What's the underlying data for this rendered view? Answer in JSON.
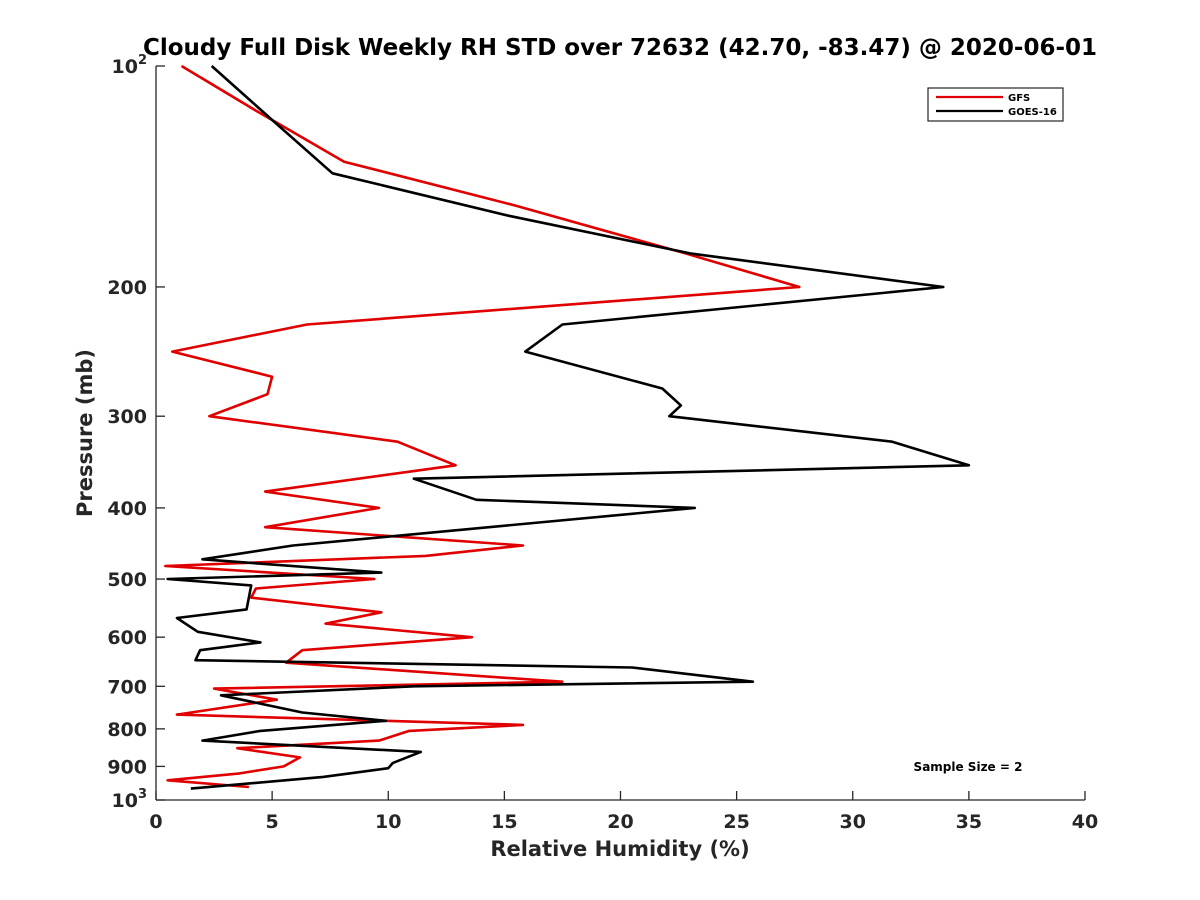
{
  "chart_data": {
    "type": "line",
    "title": "Cloudy Full Disk Weekly RH STD over 72632 (42.70, -83.47) @ 2020-06-01",
    "xlabel": "Relative Humidity (%)",
    "ylabel": "Pressure (mb)",
    "xlim": [
      0,
      40
    ],
    "ylim": [
      100,
      1000
    ],
    "y_scale": "log",
    "y_reversed": true,
    "grid": false,
    "legend_position": "top-right",
    "x_ticks": [
      0,
      5,
      10,
      15,
      20,
      25,
      30,
      35,
      40
    ],
    "x_tick_labels": [
      "0",
      "5",
      "10",
      "15",
      "20",
      "25",
      "30",
      "35",
      "40"
    ],
    "y_ticks": [
      100,
      200,
      300,
      400,
      500,
      600,
      700,
      800,
      900,
      1000
    ],
    "y_tick_labels": [
      {
        "base": "10",
        "exp": "2"
      },
      {
        "base": "200",
        "exp": ""
      },
      {
        "base": "300",
        "exp": ""
      },
      {
        "base": "400",
        "exp": ""
      },
      {
        "base": "500",
        "exp": ""
      },
      {
        "base": "600",
        "exp": ""
      },
      {
        "base": "700",
        "exp": ""
      },
      {
        "base": "800",
        "exp": ""
      },
      {
        "base": "900",
        "exp": ""
      },
      {
        "base": "10",
        "exp": "3"
      }
    ],
    "annotation": "Sample Size = 2",
    "series": [
      {
        "name": "GFS",
        "color": "#e00000",
        "points": [
          [
            1.1,
            100
          ],
          [
            4.3,
            115
          ],
          [
            8.1,
            135
          ],
          [
            15.5,
            155
          ],
          [
            22.8,
            180
          ],
          [
            27.7,
            200
          ],
          [
            6.5,
            225
          ],
          [
            0.7,
            245
          ],
          [
            5.0,
            265
          ],
          [
            4.8,
            280
          ],
          [
            2.3,
            300
          ],
          [
            10.4,
            325
          ],
          [
            12.9,
            350
          ],
          [
            4.7,
            380
          ],
          [
            9.6,
            400
          ],
          [
            4.7,
            425
          ],
          [
            15.8,
            450
          ],
          [
            11.6,
            465
          ],
          [
            0.4,
            480
          ],
          [
            9.4,
            500
          ],
          [
            4.3,
            515
          ],
          [
            4.1,
            530
          ],
          [
            9.7,
            555
          ],
          [
            7.3,
            575
          ],
          [
            13.6,
            600
          ],
          [
            6.3,
            625
          ],
          [
            5.6,
            650
          ],
          [
            17.5,
            690
          ],
          [
            2.5,
            705
          ],
          [
            5.2,
            730
          ],
          [
            0.9,
            765
          ],
          [
            15.8,
            790
          ],
          [
            10.9,
            805
          ],
          [
            9.6,
            830
          ],
          [
            3.5,
            850
          ],
          [
            6.2,
            875
          ],
          [
            5.5,
            900
          ],
          [
            3.6,
            920
          ],
          [
            0.5,
            940
          ],
          [
            4.0,
            960
          ]
        ]
      },
      {
        "name": "GOES-16",
        "color": "#000000",
        "points": [
          [
            2.4,
            100
          ],
          [
            5.2,
            120
          ],
          [
            7.6,
            140
          ],
          [
            15.2,
            160
          ],
          [
            23.0,
            180
          ],
          [
            33.9,
            200
          ],
          [
            17.5,
            225
          ],
          [
            15.9,
            245
          ],
          [
            21.8,
            275
          ],
          [
            22.6,
            290
          ],
          [
            22.1,
            300
          ],
          [
            31.7,
            325
          ],
          [
            35.0,
            350
          ],
          [
            11.1,
            365
          ],
          [
            13.8,
            390
          ],
          [
            23.2,
            400
          ],
          [
            5.9,
            450
          ],
          [
            2.0,
            470
          ],
          [
            9.7,
            490
          ],
          [
            0.5,
            500
          ],
          [
            4.1,
            510
          ],
          [
            3.9,
            550
          ],
          [
            0.9,
            565
          ],
          [
            1.8,
            590
          ],
          [
            4.5,
            610
          ],
          [
            1.9,
            625
          ],
          [
            1.7,
            645
          ],
          [
            20.5,
            660
          ],
          [
            25.7,
            690
          ],
          [
            11.1,
            700
          ],
          [
            2.8,
            720
          ],
          [
            6.3,
            760
          ],
          [
            9.9,
            780
          ],
          [
            4.5,
            805
          ],
          [
            2.0,
            830
          ],
          [
            11.4,
            860
          ],
          [
            10.2,
            890
          ],
          [
            10.0,
            905
          ],
          [
            7.2,
            930
          ],
          [
            1.5,
            965
          ]
        ]
      }
    ]
  }
}
